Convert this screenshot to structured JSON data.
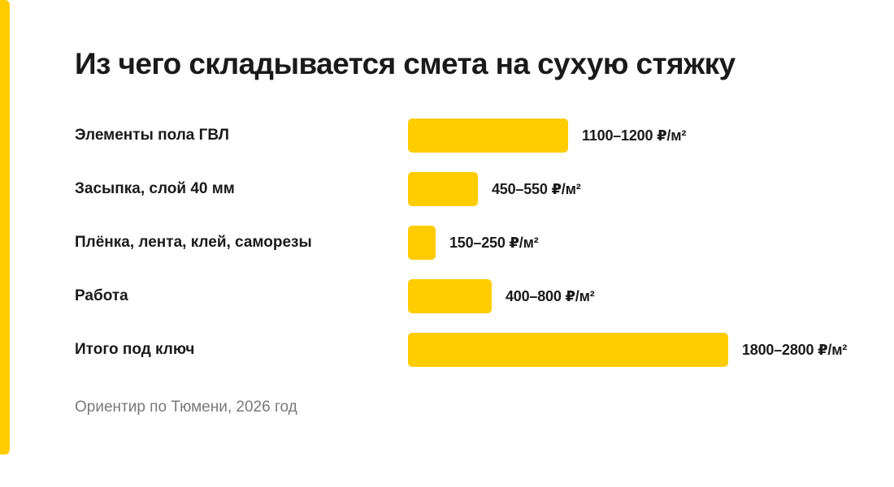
{
  "colors": {
    "accent": "#FFCC00",
    "text": "#1a1a1a",
    "muted": "#7a7a7a",
    "background": "#ffffff"
  },
  "chart_data": {
    "type": "bar",
    "orientation": "horizontal",
    "title": "Из чего складывается смета на сухую стяжку",
    "unit": "₽/м²",
    "categories": [
      "Элементы пола ГВЛ",
      "Засыпка, слой 40 мм",
      "Плёнка, лента, клей, саморезы",
      "Работа",
      "Итого под ключ"
    ],
    "ranges": [
      [
        1100,
        1200
      ],
      [
        450,
        550
      ],
      [
        150,
        250
      ],
      [
        400,
        800
      ],
      [
        1800,
        2800
      ]
    ],
    "value_labels": [
      "1100–1200 ₽/м²",
      "450–550 ₽/м²",
      "150–250 ₽/м²",
      "400–800 ₽/м²",
      "1800–2800 ₽/м²"
    ],
    "grid": false,
    "legend": "none"
  },
  "footnote": "Ориентир по Тюмени, 2026 год"
}
